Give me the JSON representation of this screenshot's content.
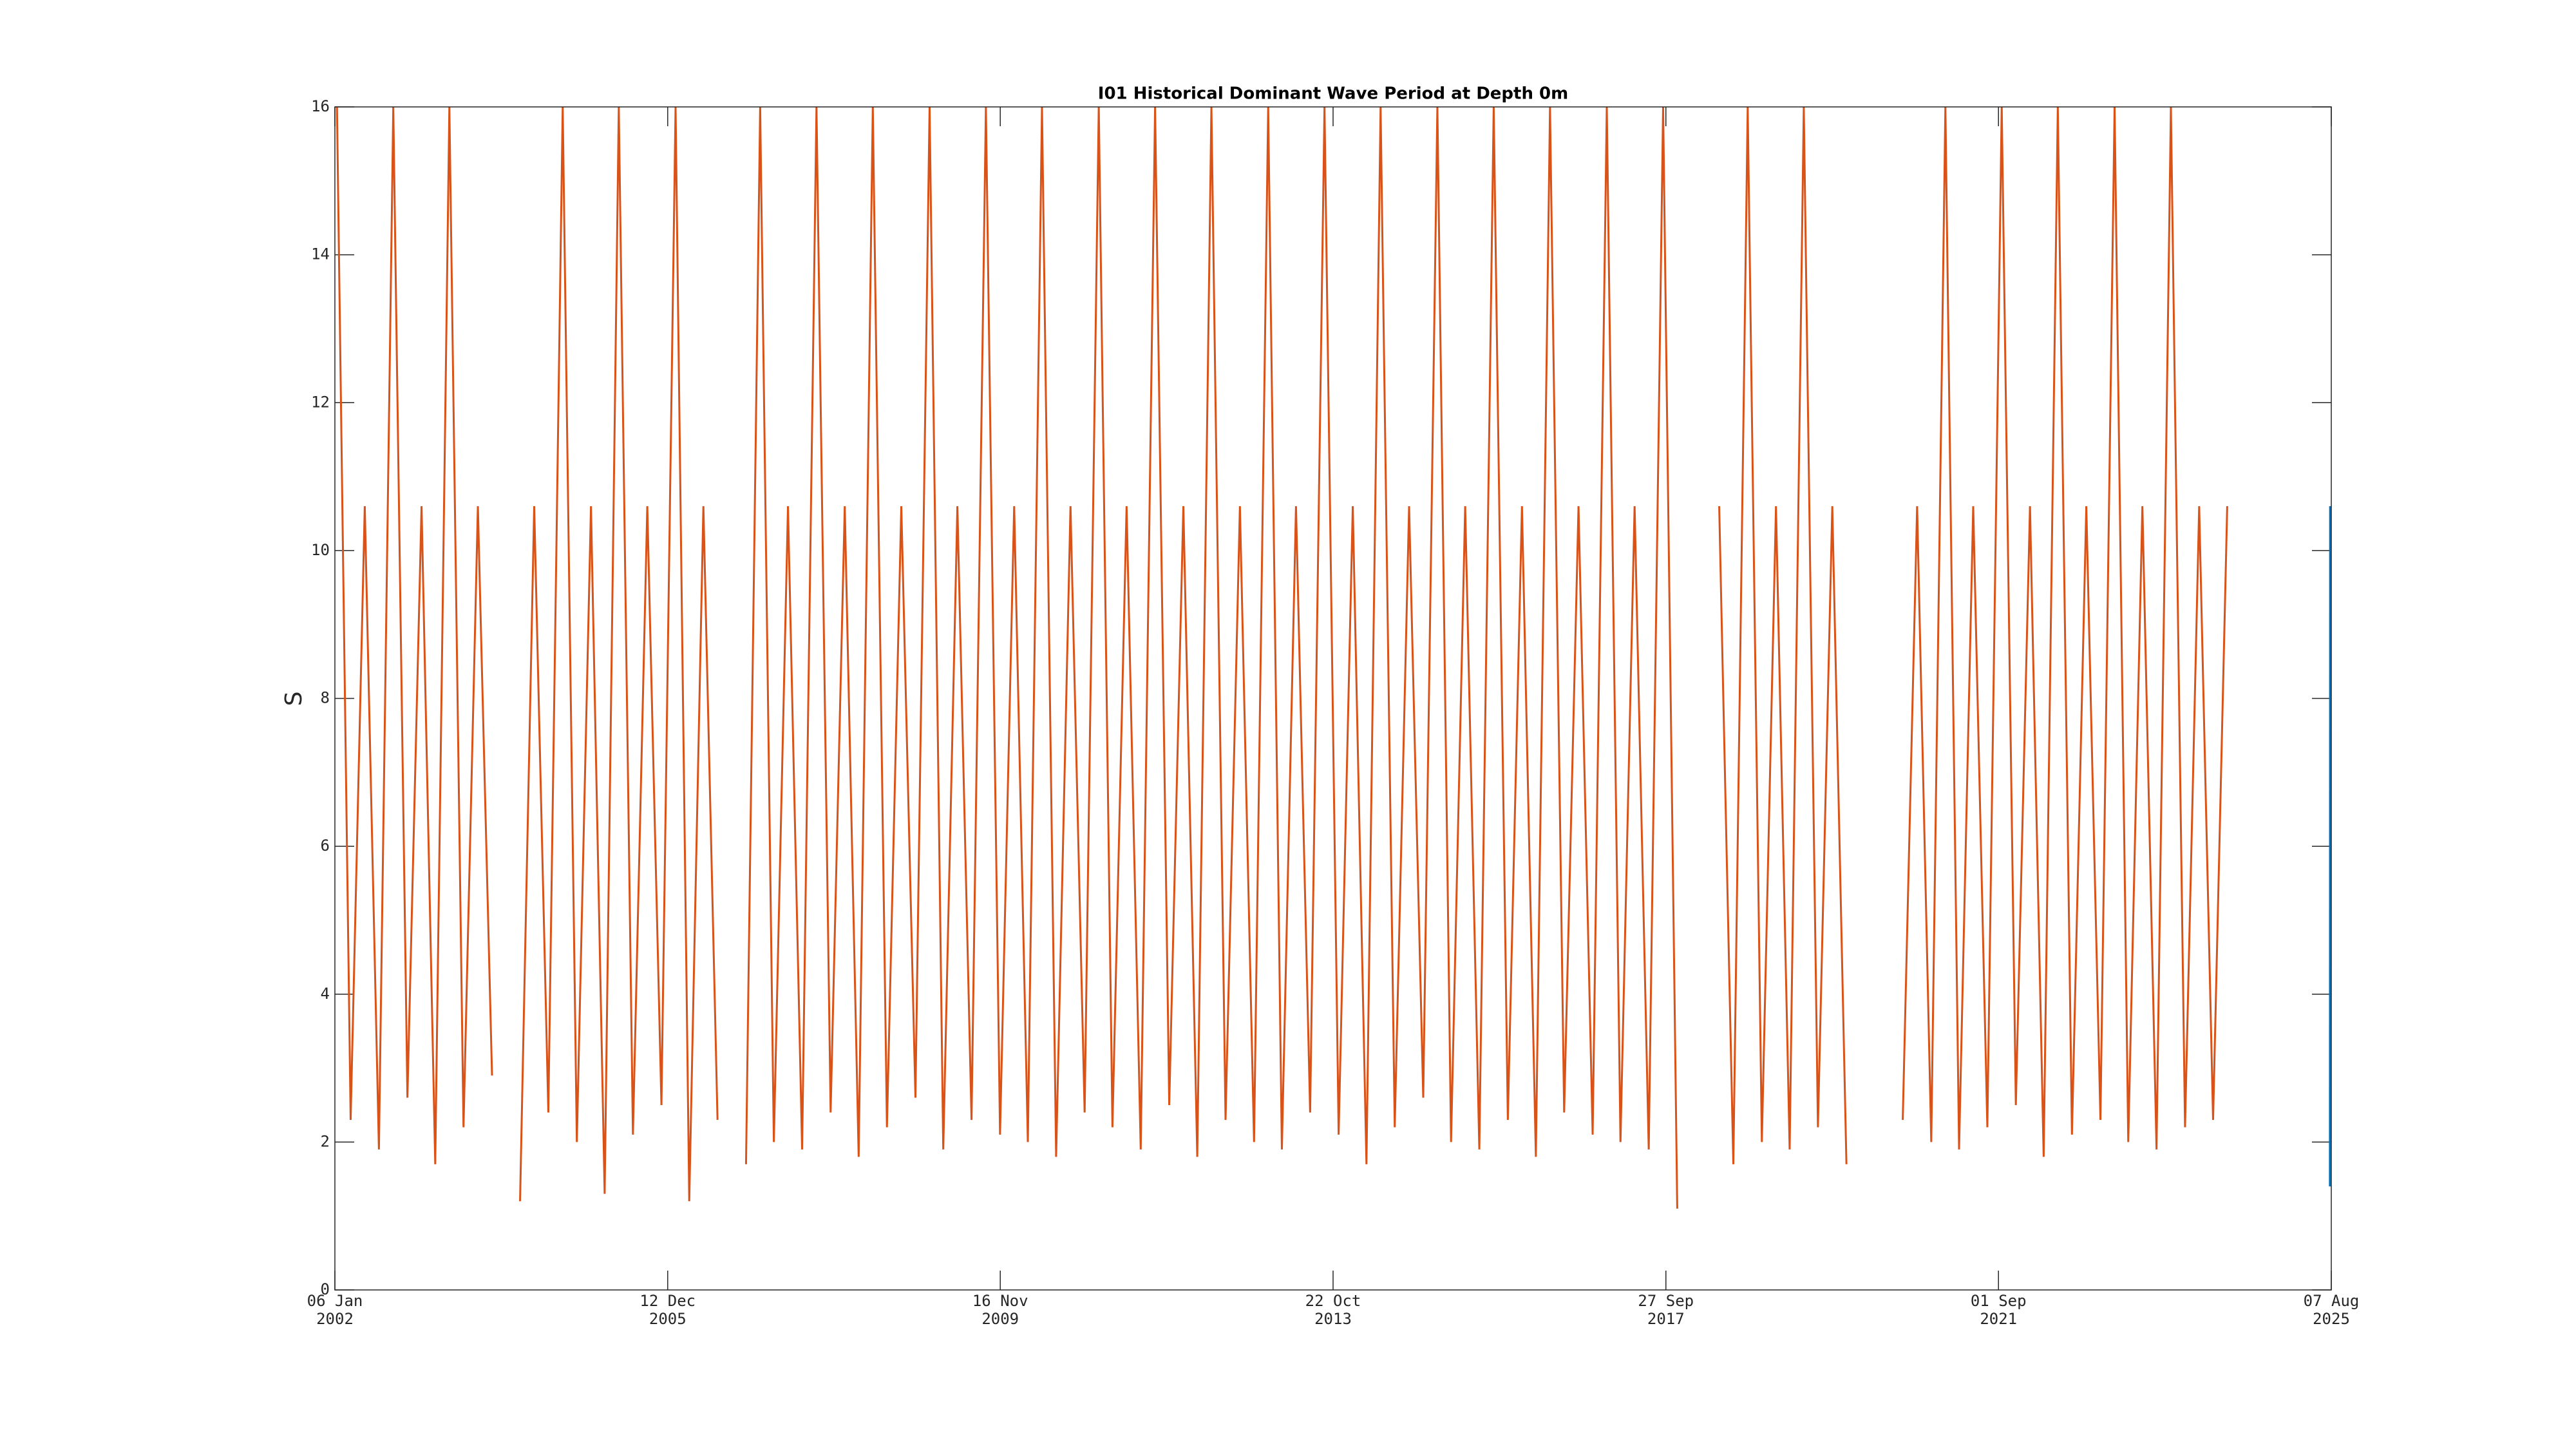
{
  "chart_data": {
    "type": "line",
    "title": "I01 Historical Dominant Wave Period at Depth 0m",
    "y_label": "S",
    "xlim": [
      "2002-01-06",
      "2025-08-07"
    ],
    "xticks": [
      {
        "value": "2002-01-06",
        "label": [
          "06 Jan",
          "2002"
        ]
      },
      {
        "value": "2005-12-12",
        "label": [
          "12 Dec",
          "2005"
        ]
      },
      {
        "value": "2009-11-16",
        "label": [
          "16 Nov",
          "2009"
        ]
      },
      {
        "value": "2013-10-22",
        "label": [
          "22 Oct",
          "2013"
        ]
      },
      {
        "value": "2017-09-27",
        "label": [
          "27 Sep",
          "2017"
        ]
      },
      {
        "value": "2021-09-01",
        "label": [
          "01 Sep",
          "2021"
        ]
      },
      {
        "value": "2025-08-07",
        "label": [
          "07 Aug",
          "2025"
        ]
      }
    ],
    "ylim": [
      0,
      16
    ],
    "yticks": [
      0,
      2,
      4,
      6,
      8,
      10,
      12,
      14,
      16
    ],
    "grid": false,
    "series": [
      {
        "color": "#D95319",
        "x": [
          "2002-01-15",
          "2002-03-15",
          "2002-05-15",
          "2002-07-15",
          "2002-09-15",
          "2002-11-15",
          "2003-01-15",
          "2003-03-15",
          "2003-05-15",
          "2003-07-15",
          "2003-09-15",
          "2003-11-15",
          "2004-01-15",
          "2004-03-15",
          "2004-05-15",
          "2004-07-15",
          "2004-09-15",
          "2004-11-15",
          "2005-01-15",
          "2005-03-15",
          "2005-05-15",
          "2005-07-15",
          "2005-09-15",
          "2005-11-15",
          "2006-01-15",
          "2006-03-15",
          "2006-05-15",
          "2006-07-15",
          "2006-09-15",
          "2006-11-15",
          "2007-01-15",
          "2007-03-15",
          "2007-05-15",
          "2007-07-15",
          "2007-09-15",
          "2007-11-15",
          "2008-01-15",
          "2008-03-15",
          "2008-05-15",
          "2008-07-15",
          "2008-09-15",
          "2008-11-15",
          "2009-01-15",
          "2009-03-15",
          "2009-05-15",
          "2009-07-15",
          "2009-09-15",
          "2009-11-15",
          "2010-01-15",
          "2010-03-15",
          "2010-05-15",
          "2010-07-15",
          "2010-09-15",
          "2010-11-15",
          "2011-01-15",
          "2011-03-15",
          "2011-05-15",
          "2011-07-15",
          "2011-09-15",
          "2011-11-15",
          "2012-01-15",
          "2012-03-15",
          "2012-05-15",
          "2012-07-15",
          "2012-09-15",
          "2012-11-15",
          "2013-01-15",
          "2013-03-15",
          "2013-05-15",
          "2013-07-15",
          "2013-09-15",
          "2013-11-15",
          "2014-01-15",
          "2014-03-15",
          "2014-05-15",
          "2014-07-15",
          "2014-09-15",
          "2014-11-15",
          "2015-01-15",
          "2015-03-15",
          "2015-05-15",
          "2015-07-15",
          "2015-09-15",
          "2015-11-15",
          "2016-01-15",
          "2016-03-15",
          "2016-05-15",
          "2016-07-15",
          "2016-09-15",
          "2016-11-15",
          "2017-01-15",
          "2017-03-15",
          "2017-05-15",
          "2017-07-15",
          "2017-09-15",
          "2017-11-15",
          "2018-01-15",
          "2018-03-15",
          "2018-05-15",
          "2018-07-15",
          "2018-09-15",
          "2018-11-15",
          "2019-01-15",
          "2019-03-15",
          "2019-05-15",
          "2019-07-15",
          "2019-09-15",
          "2019-11-15",
          "2020-01-15",
          "2020-03-15",
          "2020-05-15",
          "2020-07-15",
          "2020-09-15",
          "2020-11-15",
          "2021-01-15",
          "2021-03-15",
          "2021-05-15",
          "2021-07-15",
          "2021-09-15",
          "2021-11-15",
          "2022-01-15",
          "2022-03-15",
          "2022-05-15",
          "2022-07-15",
          "2022-09-15",
          "2022-11-15",
          "2023-01-15",
          "2023-03-15",
          "2023-05-15",
          "2023-07-15",
          "2023-09-15",
          "2023-11-15",
          "2024-01-15",
          "2024-03-15",
          "2024-05-15"
        ],
        "values": [
          16,
          2.3,
          10.6,
          1.9,
          16,
          2.6,
          10.6,
          1.7,
          16,
          2.2,
          10.6,
          2.9,
          null,
          1.2,
          10.6,
          2.4,
          16,
          2.0,
          10.6,
          1.3,
          16,
          2.1,
          10.6,
          2.5,
          16,
          1.2,
          10.6,
          2.3,
          null,
          1.7,
          16,
          2.0,
          10.6,
          1.9,
          16,
          2.4,
          10.6,
          1.8,
          16,
          2.2,
          10.6,
          2.6,
          16,
          1.9,
          10.6,
          2.3,
          16,
          2.1,
          10.6,
          2.0,
          16,
          1.8,
          10.6,
          2.4,
          16,
          2.2,
          10.6,
          1.9,
          16,
          2.5,
          10.6,
          1.8,
          16,
          2.3,
          10.6,
          2.0,
          16,
          1.9,
          10.6,
          2.4,
          16,
          2.1,
          10.6,
          1.7,
          16,
          2.2,
          10.6,
          2.6,
          16,
          2.0,
          10.6,
          1.9,
          16,
          2.3,
          10.6,
          1.8,
          16,
          2.4,
          10.6,
          2.1,
          16,
          2.0,
          10.6,
          1.9,
          16,
          1.1,
          null,
          null,
          10.6,
          1.7,
          16,
          2.0,
          10.6,
          1.9,
          16,
          2.2,
          10.6,
          1.7,
          null,
          null,
          null,
          2.3,
          10.6,
          2.0,
          16,
          1.9,
          10.6,
          2.2,
          16,
          2.5,
          10.6,
          1.8,
          16,
          2.1,
          10.6,
          2.3,
          16,
          2.0,
          10.6,
          1.9,
          16,
          2.2,
          10.6,
          2.3,
          10.6
        ]
      },
      {
        "color": "#0072BD",
        "x": [
          "2025-08-01",
          "2025-08-02"
        ],
        "values": [
          1.4,
          10.6
        ]
      }
    ]
  }
}
